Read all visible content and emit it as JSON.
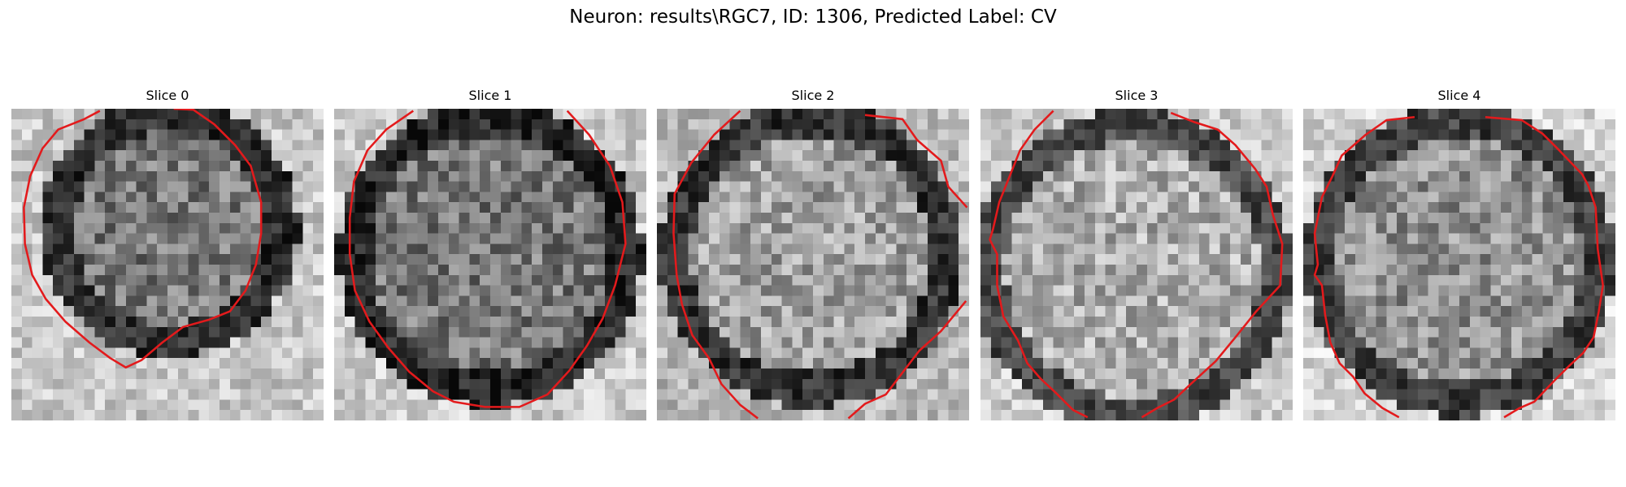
{
  "figure": {
    "title": "Neuron: results\\RGC7, ID: 1306, Predicted Label: CV"
  },
  "slices": [
    {
      "title": "Slice 0"
    },
    {
      "title": "Slice 1"
    },
    {
      "title": "Slice 2"
    },
    {
      "title": "Slice 3"
    },
    {
      "title": "Slice 4"
    }
  ],
  "colors": {
    "contour": "#e31a1c",
    "background": "#ffffff"
  },
  "image": {
    "colormap": "grayscale",
    "grid_cells": 30
  }
}
